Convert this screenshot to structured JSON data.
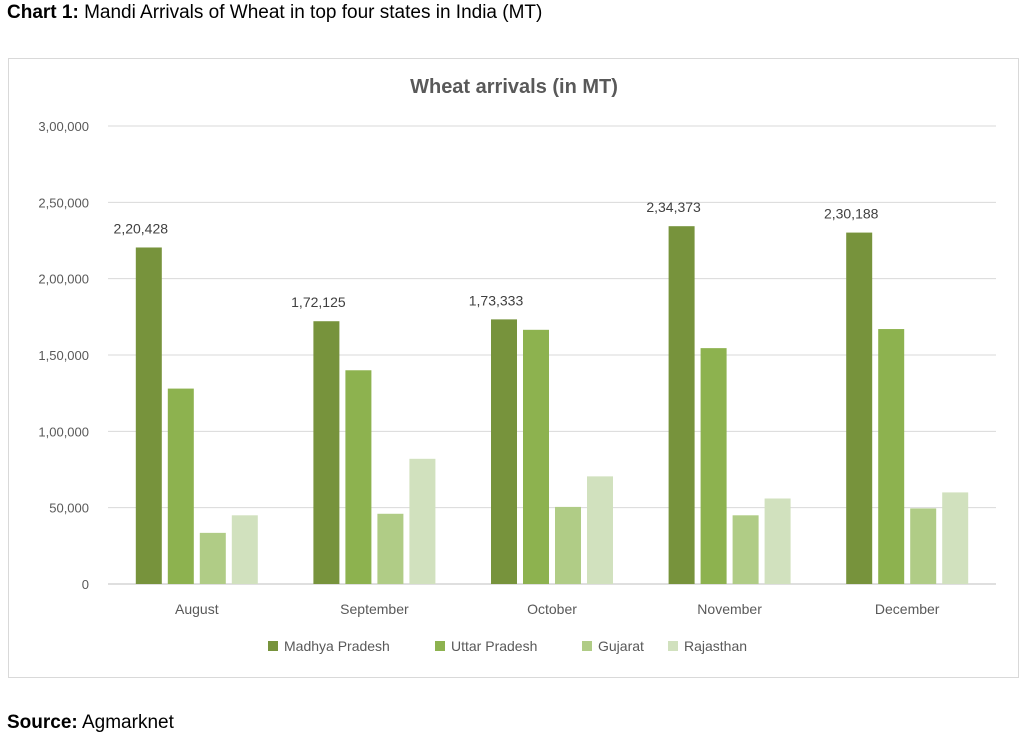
{
  "caption": {
    "prefix": "Chart 1:",
    "text": "Mandi Arrivals of Wheat in top four states in India (MT)"
  },
  "source": {
    "prefix": "Source:",
    "text": "Agmarknet"
  },
  "chart_data": {
    "type": "bar",
    "title": "Wheat arrivals (in MT)",
    "xlabel": "",
    "ylabel": "",
    "ylim": [
      0,
      300000
    ],
    "yticks": [
      0,
      50000,
      100000,
      150000,
      200000,
      250000,
      300000
    ],
    "ytick_labels": [
      "0",
      "50,000",
      "1,00,000",
      "1,50,000",
      "2,00,000",
      "2,50,000",
      "3,00,000"
    ],
    "grid": true,
    "legend_position": "bottom",
    "categories": [
      "August",
      "September",
      "October",
      "November",
      "December"
    ],
    "series": [
      {
        "name": "Madhya Pradesh",
        "color": "#77933c",
        "values": [
          220428,
          172125,
          173333,
          234373,
          230188
        ],
        "data_labels": [
          "2,20,428",
          "1,72,125",
          "1,73,333",
          "2,34,373",
          "2,30,188"
        ]
      },
      {
        "name": "Uttar Pradesh",
        "color": "#8db24f",
        "values": [
          128000,
          140000,
          166500,
          154500,
          167000
        ]
      },
      {
        "name": "Gujarat",
        "color": "#b0cc86",
        "values": [
          33500,
          46000,
          50500,
          45000,
          49500
        ]
      },
      {
        "name": "Rajasthan",
        "color": "#d1e1be",
        "values": [
          45000,
          82000,
          70500,
          56000,
          60000
        ]
      }
    ]
  }
}
